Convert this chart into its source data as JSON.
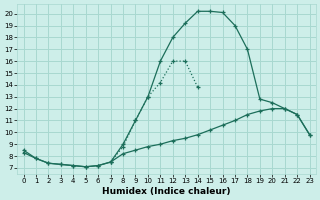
{
  "xlabel": "Humidex (Indice chaleur)",
  "bg_color": "#cdeee9",
  "grid_color": "#a8d8d0",
  "line_color": "#1c6e5a",
  "xlim": [
    -0.5,
    23.5
  ],
  "ylim": [
    6.5,
    20.8
  ],
  "xticks": [
    0,
    1,
    2,
    3,
    4,
    5,
    6,
    7,
    8,
    9,
    10,
    11,
    12,
    13,
    14,
    15,
    16,
    17,
    18,
    19,
    20,
    21,
    22,
    23
  ],
  "yticks": [
    7,
    8,
    9,
    10,
    11,
    12,
    13,
    14,
    15,
    16,
    17,
    18,
    19,
    20
  ],
  "line_top_x": [
    0,
    1,
    2,
    3,
    4,
    5,
    6,
    7,
    8,
    9,
    10,
    11,
    12,
    13,
    14,
    15,
    16,
    17,
    18,
    19,
    20,
    21,
    22,
    23
  ],
  "line_top_y": [
    8.5,
    7.8,
    7.4,
    7.3,
    7.2,
    7.1,
    7.2,
    7.5,
    9.0,
    11.0,
    13.0,
    16.0,
    18.0,
    19.2,
    20.2,
    20.2,
    20.1,
    19.0,
    17.0,
    12.8,
    12.5,
    12.0,
    11.5,
    9.8
  ],
  "line_mid_x": [
    0,
    1,
    2,
    3,
    4,
    5,
    6,
    7,
    8,
    9,
    10,
    11,
    12,
    13,
    14,
    15,
    16,
    17,
    18,
    19,
    20,
    21,
    22,
    23
  ],
  "line_mid_y": [
    8.3,
    7.8,
    7.4,
    7.3,
    7.2,
    7.1,
    7.2,
    7.5,
    8.2,
    8.5,
    8.8,
    9.0,
    9.3,
    9.5,
    9.8,
    10.2,
    10.6,
    11.0,
    11.5,
    11.8,
    12.0,
    12.0,
    11.5,
    9.8
  ],
  "line_dot_x": [
    7,
    8,
    9,
    10,
    11,
    12,
    13,
    14
  ],
  "line_dot_y": [
    7.5,
    8.8,
    11.0,
    13.0,
    14.2,
    16.0,
    16.0,
    13.8
  ]
}
